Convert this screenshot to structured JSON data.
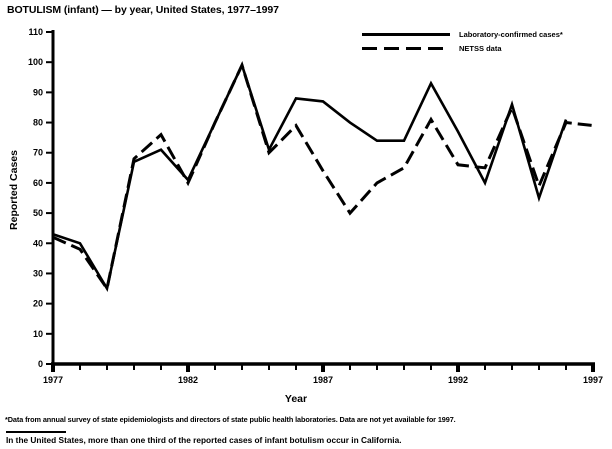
{
  "chart_data": {
    "type": "line",
    "title": "BOTULISM (infant) — by year, United States, 1977–1997",
    "xlabel": "Year",
    "ylabel": "Reported Cases",
    "x_range": [
      1977,
      1997
    ],
    "ylim": [
      0,
      110
    ],
    "yticks": [
      0,
      10,
      20,
      30,
      40,
      50,
      60,
      70,
      80,
      90,
      100,
      110
    ],
    "xtick_labels": [
      1977,
      1982,
      1987,
      1992,
      1997
    ],
    "grid": false,
    "legend_position": "top-right-inside",
    "line_color": "#000000",
    "series": [
      {
        "name": "Laboratory-confirmed cases*",
        "style": "solid",
        "values": [
          43,
          40,
          25,
          67,
          71,
          61,
          80,
          99,
          71,
          88,
          87,
          80,
          74,
          74,
          93,
          77,
          60,
          86,
          55,
          81,
          null
        ]
      },
      {
        "name": "NETSS data",
        "style": "dashed",
        "values": [
          42,
          38,
          25,
          68,
          76,
          60,
          80,
          99,
          70,
          79,
          64,
          50,
          60,
          65,
          81,
          66,
          65,
          85,
          59,
          80,
          79
        ]
      }
    ]
  },
  "footnotes": {
    "line1": "*Data from annual survey of state epidemiologists and directors of state public health laboratories. Data are not yet available for 1997.",
    "line2": "In the United States, more than one third of the reported cases of infant botulism occur in California."
  }
}
